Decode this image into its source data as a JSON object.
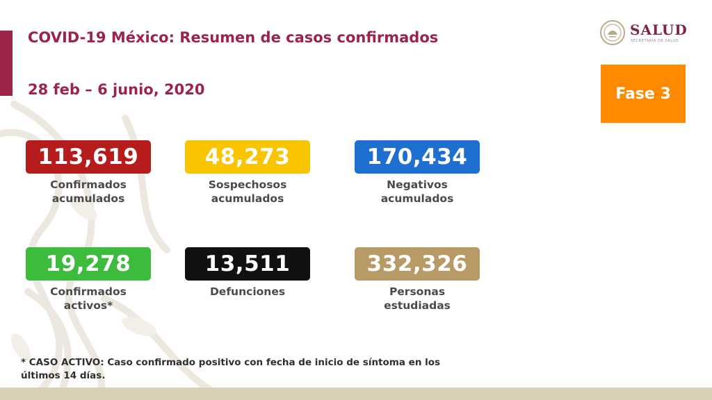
{
  "header": {
    "title": "COVID-19 México: Resumen de casos confirmados",
    "date_range": "28 feb – 6 junio, 2020"
  },
  "logo": {
    "name": "SALUD",
    "subtitle": "SECRETARÍA DE SALUD"
  },
  "phase_badge": {
    "label": "Fase 3",
    "color": "#ff8a00"
  },
  "stats": [
    {
      "value": "113,619",
      "label_lines": [
        "Confirmados",
        "acumulados"
      ],
      "color": "#b71c1c"
    },
    {
      "value": "48,273",
      "label_lines": [
        "Sospechosos",
        "acumulados"
      ],
      "color": "#f9c400"
    },
    {
      "value": "170,434",
      "label_lines": [
        "Negativos",
        "acumulados"
      ],
      "color": "#1e6fd0"
    },
    {
      "value": "19,278",
      "label_lines": [
        "Confirmados",
        "activos*"
      ],
      "color": "#3dbb3d"
    },
    {
      "value": "13,511",
      "label_lines": [
        "Defunciones"
      ],
      "color": "#111111"
    },
    {
      "value": "332,326",
      "label_lines": [
        "Personas",
        "estudiadas"
      ],
      "color": "#b89a66"
    }
  ],
  "footnote": {
    "line1": "* CASO ACTIVO: Caso confirmado positivo con fecha de inicio de síntoma en los",
    "line2": "últimos 14 días."
  },
  "colors": {
    "accent": "#9d2449",
    "footer_band": "#d9cfb6"
  }
}
